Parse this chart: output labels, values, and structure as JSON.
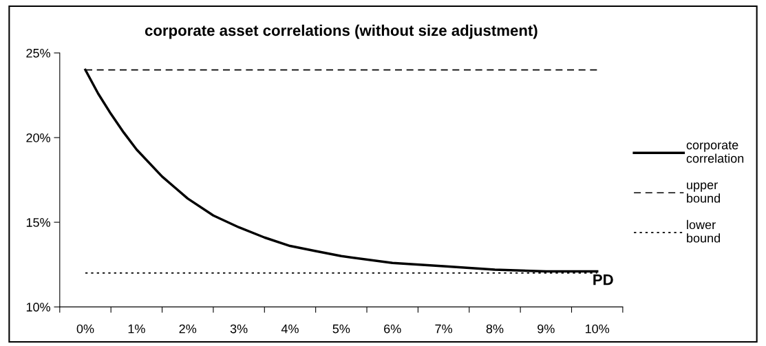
{
  "chart_data": {
    "type": "line",
    "title": "corporate asset correlations (without size adjustment)",
    "xlabel": "PD",
    "xlim": [
      -0.5,
      10.5
    ],
    "xticks": [
      {
        "value": -0.5,
        "label": null
      },
      {
        "value": 0,
        "label": "0%"
      },
      {
        "value": 0.5,
        "label": null
      },
      {
        "value": 1,
        "label": "1%"
      },
      {
        "value": 1.5,
        "label": null
      },
      {
        "value": 2,
        "label": "2%"
      },
      {
        "value": 2.5,
        "label": null
      },
      {
        "value": 3,
        "label": "3%"
      },
      {
        "value": 3.5,
        "label": null
      },
      {
        "value": 4,
        "label": "4%"
      },
      {
        "value": 4.5,
        "label": null
      },
      {
        "value": 5,
        "label": "5%"
      },
      {
        "value": 5.5,
        "label": null
      },
      {
        "value": 6,
        "label": "6%"
      },
      {
        "value": 6.5,
        "label": null
      },
      {
        "value": 7,
        "label": "7%"
      },
      {
        "value": 7.5,
        "label": null
      },
      {
        "value": 8,
        "label": "8%"
      },
      {
        "value": 8.5,
        "label": null
      },
      {
        "value": 9,
        "label": "9%"
      },
      {
        "value": 9.5,
        "label": null
      },
      {
        "value": 10,
        "label": "10%"
      },
      {
        "value": 10.5,
        "label": null
      }
    ],
    "ylim": [
      10,
      25
    ],
    "yticks": [
      {
        "value": 10,
        "label": "10%"
      },
      {
        "value": 15,
        "label": "15%"
      },
      {
        "value": 20,
        "label": "20%"
      },
      {
        "value": 25,
        "label": "25%"
      }
    ],
    "grid": false,
    "legend": "right",
    "marker": "none",
    "series": [
      {
        "name": "corporate\ncorrelation",
        "color": "#000000",
        "line_style": "solid",
        "x": [
          0,
          0.25,
          0.5,
          0.75,
          1,
          1.5,
          2,
          2.5,
          3,
          3.5,
          4,
          4.5,
          5,
          6,
          7,
          8,
          9,
          10
        ],
        "values": [
          24,
          22.6,
          21.4,
          20.3,
          19.3,
          17.7,
          16.4,
          15.4,
          14.7,
          14.1,
          13.6,
          13.3,
          13.0,
          12.6,
          12.4,
          12.2,
          12.1,
          12.1
        ]
      },
      {
        "name": "upper\nbound",
        "color": "#000000",
        "line_style": "dashed",
        "x": [
          0,
          10
        ],
        "values": [
          24,
          24
        ]
      },
      {
        "name": "lower\nbound",
        "color": "#000000",
        "line_style": "dotted",
        "x": [
          0,
          10
        ],
        "values": [
          12,
          12
        ]
      }
    ]
  }
}
